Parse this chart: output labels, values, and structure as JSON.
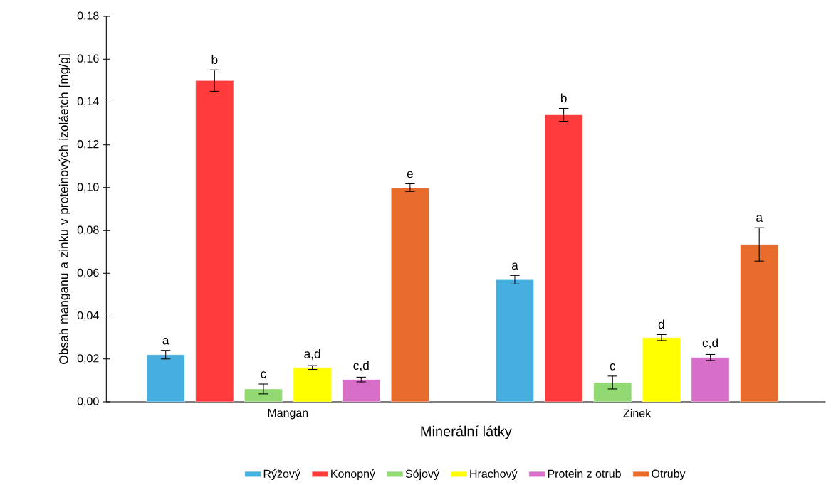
{
  "chart_data": {
    "type": "bar",
    "xlabel": "Minerální látky",
    "ylabel": "Obsah manganu a zinku v proteinových izoláetch [mg/g]",
    "categories": [
      "Mangan",
      "Zinek"
    ],
    "series": [
      {
        "name": "Rýžový",
        "color": "#46afdf",
        "values": [
          0.022,
          0.057
        ],
        "errors": [
          0.002,
          0.002
        ],
        "value_labels": [
          "a",
          "a"
        ]
      },
      {
        "name": "Konopný",
        "color": "#ff3b3b",
        "values": [
          0.15,
          0.134
        ],
        "errors": [
          0.005,
          0.003
        ],
        "value_labels": [
          "b",
          "b"
        ]
      },
      {
        "name": "Sójový",
        "color": "#92d873",
        "values": [
          0.006,
          0.009
        ],
        "errors": [
          0.0023,
          0.003
        ],
        "value_labels": [
          "c",
          "c"
        ]
      },
      {
        "name": "Hrachový",
        "color": "#ffff00",
        "values": [
          0.016,
          0.03
        ],
        "errors": [
          0.0009,
          0.0014
        ],
        "value_labels": [
          "a,d",
          "d"
        ]
      },
      {
        "name": "Protein z otrub",
        "color": "#d76fc8",
        "values": [
          0.0104,
          0.0207
        ],
        "errors": [
          0.0011,
          0.0014
        ],
        "value_labels": [
          "c,d",
          "c,d"
        ]
      },
      {
        "name": "Otruby",
        "color": "#e86c2b",
        "values": [
          0.1,
          0.0735
        ],
        "errors": [
          0.0018,
          0.0078
        ],
        "value_labels": [
          "e",
          "a"
        ]
      }
    ],
    "ylim": [
      0,
      0.18
    ],
    "yticks": [
      {
        "value": 0,
        "label": "0,00"
      },
      {
        "value": 0.02,
        "label": "0,02"
      },
      {
        "value": 0.04,
        "label": "0,04"
      },
      {
        "value": 0.06,
        "label": "0,06"
      },
      {
        "value": 0.08,
        "label": "0,08"
      },
      {
        "value": 0.1,
        "label": "0,10"
      },
      {
        "value": 0.12,
        "label": "0,12"
      },
      {
        "value": 0.14,
        "label": "0,14"
      },
      {
        "value": 0.16,
        "label": "0,16"
      },
      {
        "value": 0.18,
        "label": "0,18"
      }
    ],
    "grid": false,
    "legend": "bottom"
  }
}
